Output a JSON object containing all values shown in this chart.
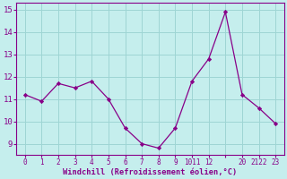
{
  "x": [
    0,
    1,
    2,
    3,
    4,
    5,
    6,
    7,
    8,
    9,
    10,
    11,
    12,
    13,
    14,
    15
  ],
  "y": [
    11.2,
    10.9,
    11.7,
    11.5,
    11.8,
    11.0,
    9.7,
    9.0,
    8.8,
    9.7,
    11.8,
    12.8,
    14.9,
    11.2,
    10.6,
    9.9
  ],
  "x_labels": [
    "0",
    "1",
    "2",
    "3",
    "4",
    "5",
    "6",
    "7",
    "8",
    "9",
    "1011",
    "12",
    "",
    "20",
    "2122",
    "23"
  ],
  "line_color": "#880088",
  "marker_color": "#880088",
  "bg_color": "#c5eeed",
  "grid_color": "#9ed5d4",
  "xlabel": "Windchill (Refroidissement éolien,°C)",
  "xlabel_color": "#880088",
  "tick_color": "#880088",
  "ylim": [
    8.5,
    15.3
  ],
  "yticks": [
    9,
    10,
    11,
    12,
    13,
    14,
    15
  ],
  "xlim": [
    -0.5,
    15.5
  ]
}
